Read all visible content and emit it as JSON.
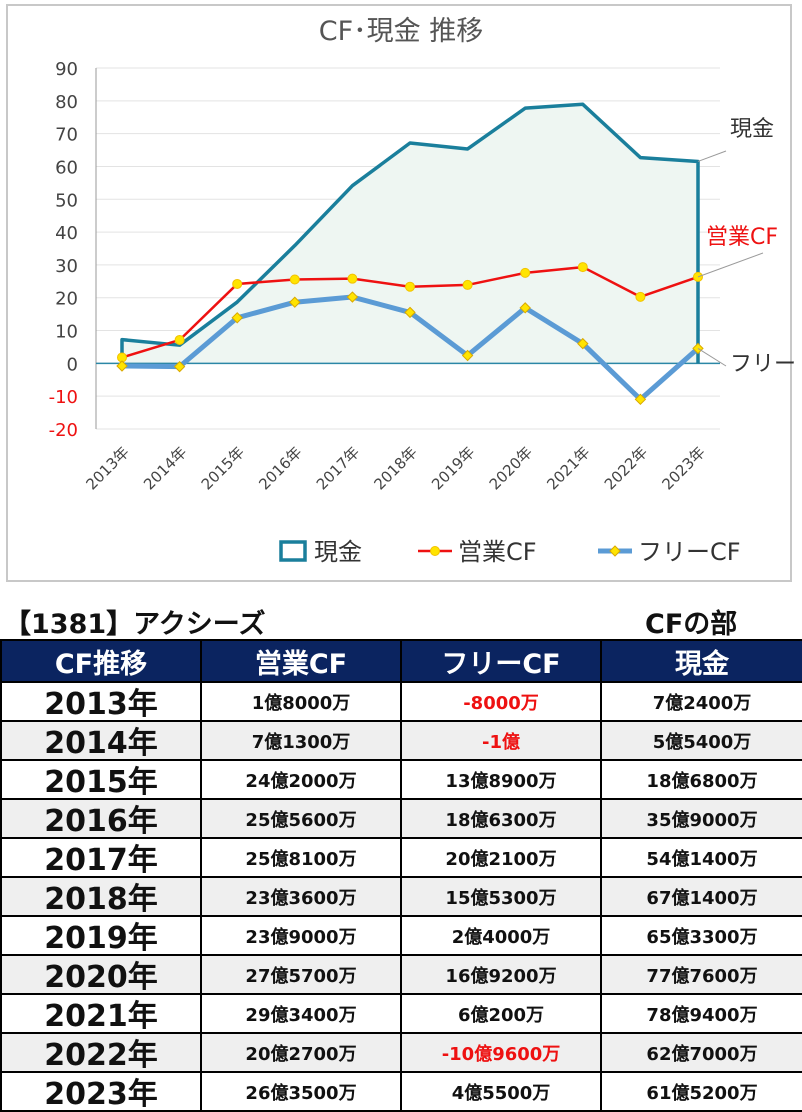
{
  "chart_data": {
    "type": "line",
    "title": "CF･現金 推移",
    "categories": [
      "2013年",
      "2014年",
      "2015年",
      "2016年",
      "2017年",
      "2018年",
      "2019年",
      "2020年",
      "2021年",
      "2022年",
      "2023年"
    ],
    "ylim": [
      -20,
      90
    ],
    "yticks": [
      90,
      80,
      70,
      60,
      50,
      40,
      30,
      20,
      10,
      0,
      -10,
      -20
    ],
    "grid": true,
    "legend_position": "bottom",
    "series": [
      {
        "name": "現金",
        "style": "area-line",
        "color": "#1a7f9c",
        "fill": "#eef6f2",
        "values": [
          7.24,
          5.54,
          18.68,
          35.9,
          54.14,
          67.14,
          65.33,
          77.76,
          78.94,
          62.7,
          61.52
        ]
      },
      {
        "name": "営業CF",
        "style": "line-marker",
        "color": "#ee1111",
        "marker": "circle",
        "values": [
          1.8,
          7.13,
          24.2,
          25.56,
          25.81,
          23.36,
          23.9,
          27.57,
          29.34,
          20.27,
          26.35
        ]
      },
      {
        "name": "フリーCF",
        "style": "line-marker",
        "color": "#5b9bd5",
        "marker": "diamond",
        "values": [
          -0.8,
          -1,
          13.89,
          18.63,
          20.21,
          15.53,
          2.4,
          16.92,
          6.02,
          -10.96,
          4.55
        ]
      }
    ],
    "annotations": [
      {
        "series": "現金",
        "text": "現金",
        "color": "#333333"
      },
      {
        "series": "営業CF",
        "text": "営業CF",
        "color": "#ee1111"
      },
      {
        "series": "フリーCF",
        "text": "フリーCF",
        "color": "#333333"
      }
    ]
  },
  "header": {
    "company": "【1381】アクシーズ",
    "section": "CFの部"
  },
  "table": {
    "columns": [
      "CF推移",
      "営業CF",
      "フリーCF",
      "現金"
    ],
    "rows": [
      {
        "year": "2013年",
        "op": "1億8000万",
        "free": "-8000万",
        "cash": "7億2400万",
        "free_negative": true
      },
      {
        "year": "2014年",
        "op": "7億1300万",
        "free": "-1億",
        "cash": "5億5400万",
        "free_negative": true
      },
      {
        "year": "2015年",
        "op": "24億2000万",
        "free": "13億8900万",
        "cash": "18億6800万",
        "free_negative": false
      },
      {
        "year": "2016年",
        "op": "25億5600万",
        "free": "18億6300万",
        "cash": "35億9000万",
        "free_negative": false
      },
      {
        "year": "2017年",
        "op": "25億8100万",
        "free": "20億2100万",
        "cash": "54億1400万",
        "free_negative": false
      },
      {
        "year": "2018年",
        "op": "23億3600万",
        "free": "15億5300万",
        "cash": "67億1400万",
        "free_negative": false
      },
      {
        "year": "2019年",
        "op": "23億9000万",
        "free": "2億4000万",
        "cash": "65億3300万",
        "free_negative": false
      },
      {
        "year": "2020年",
        "op": "27億5700万",
        "free": "16億9200万",
        "cash": "77億7600万",
        "free_negative": false
      },
      {
        "year": "2021年",
        "op": "29億3400万",
        "free": "6億200万",
        "cash": "78億9400万",
        "free_negative": false
      },
      {
        "year": "2022年",
        "op": "20億2700万",
        "free": "-10億9600万",
        "cash": "62億7000万",
        "free_negative": true
      },
      {
        "year": "2023年",
        "op": "26億3500万",
        "free": "4億5500万",
        "cash": "61億5200万",
        "free_negative": false
      }
    ]
  }
}
